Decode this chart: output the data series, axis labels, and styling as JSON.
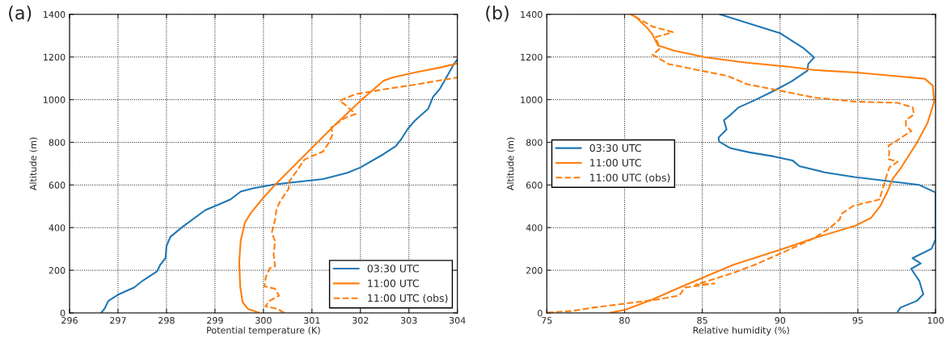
{
  "chart_data": [
    {
      "type": "line",
      "xlabel": "Potential temperature (K)",
      "ylabel": "Altitude (m)",
      "annotations": [
        "(a)"
      ],
      "xlim": [
        296,
        304
      ],
      "ylim": [
        0,
        1400
      ],
      "xticks": [
        296,
        297,
        298,
        299,
        300,
        301,
        302,
        303,
        304
      ],
      "yticks": [
        0,
        200,
        400,
        600,
        800,
        1000,
        1200,
        1400
      ],
      "grid": true,
      "legend": "bottom right",
      "series": [
        {
          "name": "03:30 UTC",
          "color": "#1f77b4",
          "line_style": "solid",
          "x": [
            296.65,
            296.72,
            296.8,
            297.02,
            297.33,
            297.52,
            297.8,
            297.87,
            297.98,
            298.0,
            298.08,
            298.35,
            298.8,
            299.02,
            299.32,
            299.53,
            299.8,
            300.24,
            301.23,
            301.73,
            302.0,
            302.48,
            302.73,
            302.84,
            302.98,
            303.12,
            303.4,
            303.5,
            303.64,
            303.78,
            303.92,
            304.0
          ],
          "values": [
            0,
            19,
            56,
            88,
            119,
            153,
            194,
            225,
            257,
            313,
            357,
            407,
            482,
            503,
            532,
            569,
            585,
            603,
            628,
            657,
            682,
            745,
            782,
            814,
            864,
            901,
            958,
            1014,
            1051,
            1107,
            1164,
            1189
          ]
        },
        {
          "name": "11:00 UTC",
          "color": "#ff7f0e",
          "line_style": "solid",
          "x": [
            299.9,
            299.68,
            299.57,
            299.52,
            299.5,
            299.53,
            299.62,
            299.74,
            299.99,
            300.24,
            300.79,
            301.45,
            302.0,
            302.48,
            302.67,
            303.11,
            303.67,
            304.0
          ],
          "values": [
            2,
            19,
            50,
            125,
            238,
            338,
            425,
            469,
            538,
            601,
            726,
            876,
            995,
            1089,
            1104,
            1127,
            1152,
            1170
          ]
        },
        {
          "name": "11:00 UTC (obs)",
          "color": "#ff7f0e",
          "line_style": "dashed",
          "x": [
            300.43,
            300.29,
            300.04,
            300.12,
            300.32,
            300.24,
            300.02,
            300.05,
            300.13,
            300.24,
            300.21,
            300.24,
            300.17,
            300.24,
            300.27,
            300.35,
            300.52,
            300.52,
            300.68,
            300.79,
            300.85,
            301.23,
            301.34,
            301.43,
            301.4,
            301.68,
            301.9,
            301.68,
            301.57,
            301.9,
            302.56,
            303.11,
            304.0
          ],
          "values": [
            0,
            19,
            31,
            56,
            81,
            113,
            125,
            169,
            210,
            219,
            275,
            338,
            375,
            438,
            488,
            526,
            582,
            613,
            663,
            701,
            720,
            757,
            795,
            839,
            870,
            914,
            933,
            977,
            995,
            1026,
            1051,
            1070,
            1104
          ]
        }
      ]
    },
    {
      "type": "line",
      "xlabel": "Relative humidity (%)",
      "ylabel": "Altitude (m)",
      "annotations": [
        "(b)"
      ],
      "xlim": [
        75,
        100
      ],
      "ylim": [
        0,
        1400
      ],
      "xticks": [
        75,
        80,
        85,
        90,
        95,
        100
      ],
      "yticks": [
        0,
        200,
        400,
        600,
        800,
        1000,
        1200,
        1400
      ],
      "grid": true,
      "legend": "center left",
      "series": [
        {
          "name": "03:30 UTC",
          "color": "#1f77b4",
          "line_style": "solid",
          "x": [
            97.57,
            97.74,
            98.78,
            99.21,
            98.95,
            98.6,
            98.43,
            99.04,
            98.52,
            99.74,
            100,
            100,
            98.96,
            97.05,
            94.79,
            92.88,
            91.24,
            90.8,
            89.59,
            88.03,
            86.82,
            86.09,
            86.04,
            86.56,
            86.39,
            86.82,
            87.34,
            88.38,
            89.59,
            90.72,
            91.76,
            91.81,
            92.19,
            91.5,
            90.02,
            86.13
          ],
          "values": [
            6,
            25,
            56,
            88,
            151,
            188,
            207,
            232,
            257,
            301,
            345,
            565,
            600,
            617,
            637,
            659,
            688,
            715,
            734,
            753,
            772,
            803,
            822,
            860,
            904,
            929,
            964,
            998,
            1041,
            1085,
            1136,
            1167,
            1198,
            1242,
            1311,
            1400
          ]
        },
        {
          "name": "11:00 UTC",
          "color": "#ff7f0e",
          "line_style": "solid",
          "x": [
            79.02,
            80.06,
            81.8,
            83.53,
            87.0,
            89.95,
            92.2,
            94.8,
            95.84,
            96.45,
            96.88,
            97.23,
            97.75,
            98.79,
            99.48,
            99.91,
            99.82,
            99.3,
            97.39,
            94.96,
            92.2,
            90.46,
            87.86,
            85.26,
            83.18,
            82.14,
            81.8,
            81.45,
            80.76,
            80.41
          ],
          "values": [
            0,
            15,
            63,
            119,
            226,
            295,
            351,
            408,
            445,
            502,
            565,
            627,
            678,
            797,
            891,
            991,
            1066,
            1098,
            1111,
            1127,
            1139,
            1155,
            1173,
            1198,
            1230,
            1255,
            1305,
            1337,
            1386,
            1400
          ]
        },
        {
          "name": "11:00 UTC (obs)",
          "color": "#ff7f0e",
          "line_style": "dashed",
          "x": [
            75.03,
            76.6,
            77.98,
            80.06,
            82.14,
            83.53,
            83.87,
            85.78,
            84.57,
            87.0,
            88.38,
            89.77,
            92.2,
            93.24,
            93.84,
            93.93,
            94.71,
            96.45,
            96.45,
            96.71,
            96.88,
            97.05,
            97.57,
            96.97,
            97.02,
            96.97,
            97.4,
            98.44,
            98.09,
            98.09,
            98.61,
            98.52,
            97.57,
            94.79,
            92.2,
            89.59,
            87.86,
            86.65,
            84.92,
            82.83,
            81.8,
            82.23,
            82.14,
            81.97,
            83.1,
            81.8,
            80.58,
            80.5
          ],
          "values": [
            2,
            9,
            25,
            44,
            63,
            82,
            119,
            138,
            132,
            188,
            226,
            270,
            351,
            401,
            439,
            464,
            502,
            533,
            546,
            608,
            652,
            684,
            709,
            721,
            753,
            784,
            803,
            853,
            878,
            904,
            931,
            964,
            985,
            991,
            1010,
            1048,
            1073,
            1111,
            1136,
            1167,
            1211,
            1236,
            1267,
            1292,
            1317,
            1343,
            1393,
            1400
          ]
        }
      ]
    }
  ]
}
